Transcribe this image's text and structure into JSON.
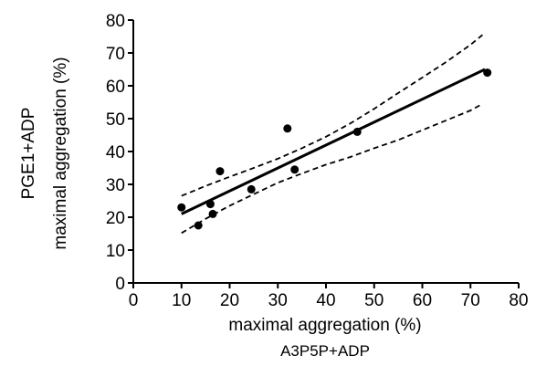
{
  "chart_data": {
    "type": "scatter",
    "title": "",
    "xlabel": "maximal aggregation (%)",
    "xlabel_secondary": "A3P5P+ADP",
    "ylabel": "maximal aggregation (%)",
    "ylabel_secondary": "PGE1+ADP",
    "xlim": [
      0,
      80
    ],
    "ylim": [
      0,
      80
    ],
    "x_ticks": [
      0,
      10,
      20,
      30,
      40,
      50,
      60,
      70,
      80
    ],
    "y_ticks": [
      0,
      10,
      20,
      30,
      40,
      50,
      60,
      70,
      80
    ],
    "x_tick_labels": [
      "0",
      "10",
      "20",
      "30",
      "40",
      "50",
      "60",
      "70",
      "80"
    ],
    "y_tick_labels": [
      "0",
      "10",
      "20",
      "30",
      "40",
      "50",
      "60",
      "70",
      "80"
    ],
    "grid": false,
    "legend": "none",
    "points": [
      {
        "x": 10,
        "y": 23
      },
      {
        "x": 13.5,
        "y": 17.5
      },
      {
        "x": 16,
        "y": 24
      },
      {
        "x": 16.5,
        "y": 21
      },
      {
        "x": 18,
        "y": 34
      },
      {
        "x": 24.5,
        "y": 28.5
      },
      {
        "x": 32,
        "y": 47
      },
      {
        "x": 33.5,
        "y": 34.5
      },
      {
        "x": 46.5,
        "y": 46
      },
      {
        "x": 73.5,
        "y": 64
      }
    ],
    "fit_line": {
      "x": [
        10,
        73
      ],
      "y": [
        21,
        65
      ]
    },
    "confidence_upper": {
      "x": [
        10,
        15,
        20,
        25,
        30,
        35,
        40,
        45,
        50,
        55,
        60,
        65,
        70,
        72.5
      ],
      "y": [
        26.5,
        29.5,
        32.3,
        35,
        37.8,
        41,
        44.5,
        48.5,
        53,
        57.8,
        62.5,
        67.3,
        72.5,
        75.5
      ]
    },
    "confidence_lower": {
      "x": [
        10,
        15,
        20,
        25,
        30,
        35,
        40,
        45,
        50,
        55,
        60,
        65,
        70,
        72.5
      ],
      "y": [
        15.2,
        19.5,
        23.5,
        27,
        30.5,
        33.3,
        36,
        38.3,
        41,
        43.5,
        46.5,
        49.5,
        52.5,
        54.5
      ]
    },
    "colors": {
      "axis": "#000000",
      "points": "#000000",
      "fit": "#000000"
    }
  }
}
